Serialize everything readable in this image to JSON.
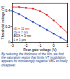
{
  "chart_data": {
    "type": "line",
    "x_label": "Rear gate voltage (V)",
    "y_label": "Threshold voltage (V)",
    "x": [
      -3,
      -2.5,
      -2,
      -1.5,
      -1,
      -0.5,
      0,
      0.5,
      1
    ],
    "series": [
      {
        "name": "tSi = 11 nm",
        "color": "#d62728",
        "marker": "circle",
        "values": [
          0.45,
          0.45,
          0.44,
          0.43,
          0.4,
          0.35,
          0.28,
          0.2,
          0.12
        ]
      },
      {
        "name": "tSi = 7 nm",
        "color": "#1f3fbf",
        "marker": "square",
        "values": [
          0.4,
          0.36,
          0.31,
          0.26,
          0.21,
          0.16,
          0.11,
          0.06,
          0.01
        ]
      }
    ],
    "annotations": [
      "BOX = 3 nm",
      "L = 1 μm"
    ],
    "xlim": [
      -3,
      1
    ],
    "xticks": [
      -3,
      -2,
      -1,
      0,
      1
    ],
    "ylim": [
      0,
      0.5
    ],
    "yticks": [
      0,
      0.2,
      0.4
    ],
    "grid": false,
    "caption": "By reducing the thickness of the film, we find the saturation region that limits VT modulation appears for increasingly negative VBG to finally disappear."
  }
}
